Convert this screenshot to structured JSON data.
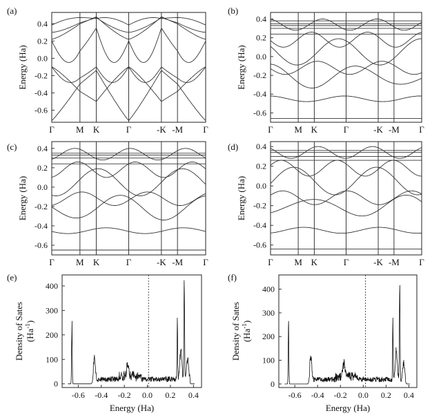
{
  "chart_data": [
    {
      "type": "line",
      "panel": "(a)",
      "ylabel": "Energy (Ha)",
      "yticks": [
        "0.4",
        "0.2",
        "0.0",
        "-0.2",
        "-0.4",
        "-0.6"
      ],
      "ylim": [
        -0.74,
        0.53
      ],
      "kpath": [
        "Γ",
        "M",
        "K",
        "Γ",
        "-K",
        "-M",
        "Γ"
      ],
      "x": [
        0,
        1.0,
        1.58,
        2.73,
        3.89,
        4.46,
        5.46
      ],
      "band_fn": "pristine",
      "nbands": 7
    },
    {
      "type": "line",
      "panel": "(b)",
      "ylabel": "Energy (Ha)",
      "yticks": [
        "0.4",
        "0.2",
        "0.0",
        "-0.2",
        "-0.4",
        "-0.6"
      ],
      "ylim": [
        -0.7,
        0.47
      ],
      "kpath": [
        "Γ",
        "M",
        "K",
        "Γ",
        "-K",
        "-M",
        "Γ"
      ],
      "x": [
        0,
        1.0,
        1.58,
        2.73,
        3.89,
        4.46,
        5.46
      ],
      "flat_bands": [
        -0.66,
        0.24,
        0.3,
        0.33,
        0.35,
        0.38
      ]
    },
    {
      "type": "line",
      "panel": "(c)",
      "ylabel": "Energy (Ha)",
      "yticks": [
        "0.4",
        "0.2",
        "0.0",
        "-0.2",
        "-0.4",
        "-0.6"
      ],
      "ylim": [
        -0.7,
        0.47
      ],
      "kpath": [
        "Γ",
        "M",
        "K",
        "Γ",
        "-K",
        "-M",
        "Γ"
      ],
      "x": [
        0,
        1.0,
        1.58,
        2.73,
        3.89,
        4.46,
        5.46
      ],
      "flat_bands": [
        -0.65,
        0.24,
        0.3,
        0.33,
        0.35
      ]
    },
    {
      "type": "line",
      "panel": "(d)",
      "ylabel": "Energy (Ha)",
      "yticks": [
        "0.4",
        "0.2",
        "0.0",
        "-0.2",
        "-0.4",
        "-0.6"
      ],
      "ylim": [
        -0.7,
        0.45
      ],
      "kpath": [
        "Γ",
        "M",
        "K",
        "Γ",
        "-K",
        "-M",
        "Γ"
      ],
      "x": [
        0,
        1.0,
        1.58,
        2.73,
        3.89,
        4.46,
        5.46
      ],
      "flat_bands": [
        -0.64,
        0.26,
        0.3,
        0.34,
        0.36
      ]
    },
    {
      "type": "line",
      "panel": "(e)",
      "ylabel_line1": "Density of Sates",
      "ylabel_line2": "(Ha",
      "ylabel_sup": "-1",
      "ylabel_close": ")",
      "xlabel": "Energy (Ha)",
      "xlim": [
        -0.74,
        0.47
      ],
      "ylim": [
        -15,
        445
      ],
      "xticks": [
        "-0.6",
        "-0.4",
        "-0.2",
        "0.0",
        "0.2",
        "0.4"
      ],
      "yticks": [
        "0",
        "100",
        "200",
        "300",
        "400"
      ],
      "fermi_level": 0.01,
      "peaks": [
        {
          "x": -0.655,
          "y": 240
        },
        {
          "x": -0.46,
          "y": 90
        },
        {
          "x": -0.17,
          "y": 60
        },
        {
          "x": 0.26,
          "y": 228
        },
        {
          "x": 0.29,
          "y": 120
        },
        {
          "x": 0.32,
          "y": 425
        },
        {
          "x": 0.35,
          "y": 88
        }
      ]
    },
    {
      "type": "line",
      "panel": "(f)",
      "ylabel_line1": "Density of Sates",
      "ylabel_line2": "(Ha",
      "ylabel_sup": "-1",
      "ylabel_close": ")",
      "xlabel": "Energy (Ha)",
      "xlim": [
        -0.74,
        0.47
      ],
      "ylim": [
        -15,
        460
      ],
      "xticks": [
        "-0.6",
        "-0.4",
        "-0.2",
        "0.0",
        "0.2",
        "0.4"
      ],
      "yticks": [
        "0",
        "100",
        "200",
        "300",
        "400"
      ],
      "fermi_level": 0.02,
      "peaks": [
        {
          "x": -0.655,
          "y": 250
        },
        {
          "x": -0.46,
          "y": 95
        },
        {
          "x": -0.17,
          "y": 60
        },
        {
          "x": 0.26,
          "y": 225
        },
        {
          "x": 0.29,
          "y": 125
        },
        {
          "x": 0.32,
          "y": 438
        },
        {
          "x": 0.355,
          "y": 70
        }
      ]
    }
  ]
}
